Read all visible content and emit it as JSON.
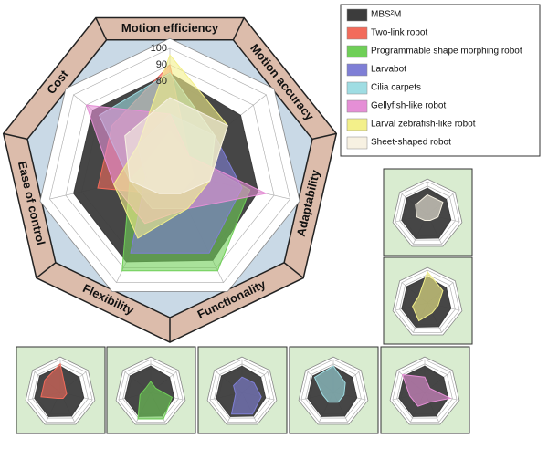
{
  "chart_data": {
    "type": "radar",
    "axes": [
      "Motion efficiency",
      "Motion accuracy",
      "Adaptability",
      "Functionality",
      "Flexibility",
      "Ease of control",
      "Cost"
    ],
    "rlim": [
      25,
      100
    ],
    "rticks": [
      80,
      90,
      100
    ],
    "series": [
      {
        "name": "MBS²M",
        "color": "#3c3c3c",
        "values": [
          85,
          80,
          80,
          85,
          86,
          85,
          85
        ]
      },
      {
        "name": "Two-link robot",
        "color": "#f26b5b",
        "values": [
          90,
          40,
          40,
          40,
          40,
          70,
          70
        ]
      },
      {
        "name": "Programmable shape morphing robot",
        "color": "#6fcf57",
        "values": [
          50,
          40,
          75,
          92,
          92,
          50,
          40
        ]
      },
      {
        "name": "Larvabot",
        "color": "#7f7fd6",
        "values": [
          60,
          60,
          70,
          80,
          80,
          40,
          50
        ]
      },
      {
        "name": "Cilia carpets",
        "color": "#9fdde3",
        "values": [
          85,
          60,
          50,
          50,
          50,
          50,
          80
        ]
      },
      {
        "name": "Gellyfish-like robot",
        "color": "#e58fd6",
        "values": [
          60,
          40,
          85,
          50,
          60,
          60,
          90
        ]
      },
      {
        "name": "Larval zebrafish-like robot",
        "color": "#f3f08a",
        "values": [
          96,
          70,
          50,
          50,
          70,
          60,
          50
        ]
      },
      {
        "name": "Sheet-shaped robot",
        "color": "#f7f1e2",
        "values": [
          70,
          70,
          50,
          40,
          40,
          50,
          60
        ]
      }
    ]
  }
}
